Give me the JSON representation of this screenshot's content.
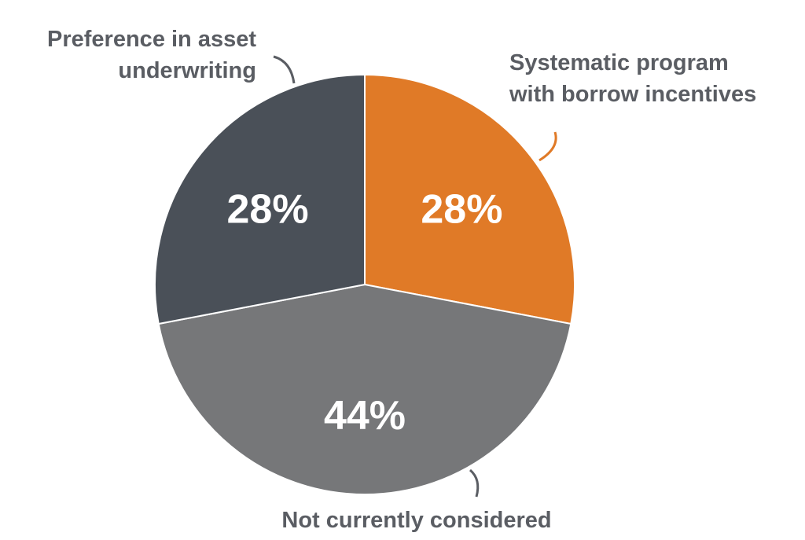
{
  "chart_data": {
    "type": "pie",
    "categories": [
      "Systematic program\nwith borrow incentives",
      "Not currently considered",
      "Preference in asset\nunderwriting"
    ],
    "values": [
      28,
      44,
      28
    ],
    "value_labels": [
      "28%",
      "44%",
      "28%"
    ],
    "colors": [
      "#e07a27",
      "#767779",
      "#4a5058"
    ]
  }
}
